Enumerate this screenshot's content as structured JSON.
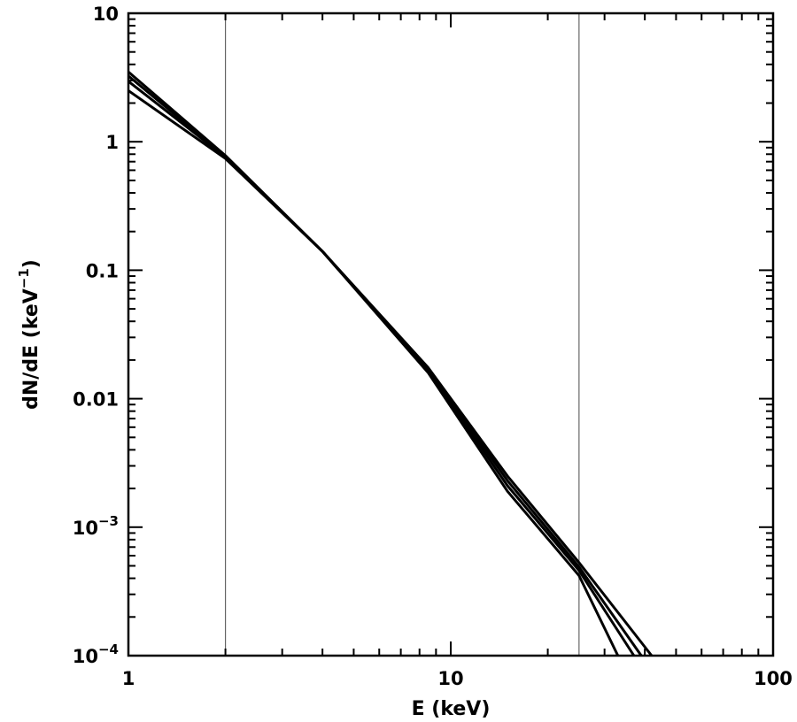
{
  "chart_data": {
    "type": "line",
    "xlabel": {
      "main": "E (keV)"
    },
    "ylabel": {
      "main": "dN/dE (keV",
      "superscript": "−1",
      "suffix": ")"
    },
    "xscale": "log",
    "yscale": "log",
    "xlim": [
      1,
      100
    ],
    "ylim": [
      0.0001,
      10
    ],
    "x_ticks": [
      {
        "value": 1,
        "label": "1"
      },
      {
        "value": 10,
        "label": "10"
      },
      {
        "value": 100,
        "label": "100"
      }
    ],
    "y_ticks": [
      {
        "value": 10,
        "label": "10"
      },
      {
        "value": 1,
        "label": "1"
      },
      {
        "value": 0.1,
        "label": "0.1"
      },
      {
        "value": 0.01,
        "label": "0.01"
      },
      {
        "value": 0.001,
        "base": "10",
        "exponent": "−3"
      },
      {
        "value": 0.0001,
        "base": "10",
        "exponent": "−4"
      }
    ],
    "vertical_lines": [
      2,
      25
    ],
    "grid": false,
    "colors": {
      "lines": "#000000",
      "reference_lines": "#666666"
    },
    "series": [
      {
        "points": [
          [
            1,
            3.5
          ],
          [
            2,
            0.78
          ],
          [
            4,
            0.14
          ],
          [
            8.5,
            0.016
          ],
          [
            15,
            0.0019
          ],
          [
            25,
            0.00042
          ],
          [
            33,
            0.0001
          ]
        ]
      },
      {
        "points": [
          [
            1,
            3.25
          ],
          [
            2,
            0.77
          ],
          [
            4,
            0.14
          ],
          [
            8.5,
            0.0165
          ],
          [
            15,
            0.0021
          ],
          [
            25,
            0.00046
          ],
          [
            37,
            0.0001
          ]
        ]
      },
      {
        "points": [
          [
            1,
            2.95
          ],
          [
            2,
            0.76
          ],
          [
            4,
            0.14
          ],
          [
            8.5,
            0.017
          ],
          [
            15,
            0.0023
          ],
          [
            25,
            0.00049
          ],
          [
            39,
            0.0001
          ]
        ]
      },
      {
        "points": [
          [
            1,
            2.5
          ],
          [
            2,
            0.74
          ],
          [
            4,
            0.14
          ],
          [
            8.5,
            0.0175
          ],
          [
            15,
            0.0025
          ],
          [
            25,
            0.00053
          ],
          [
            42,
            0.0001
          ]
        ]
      }
    ]
  }
}
